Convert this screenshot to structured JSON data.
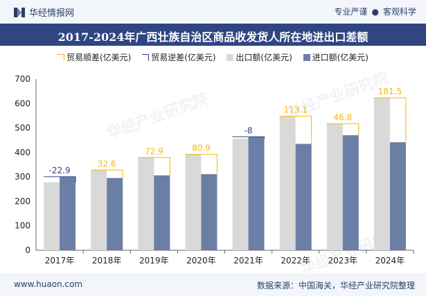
{
  "header": {
    "brand": "华经情报网",
    "right_left": "专业严谨",
    "right_right": "客观科学"
  },
  "title": "2017-2024年广西壮族自治区商品收发货人所在地进出口差额",
  "legend": [
    "贸易顺差(亿美元)",
    "贸易逆差(亿美元)",
    "出口额(亿美元)",
    "进口额(亿美元)"
  ],
  "footer": {
    "url": "www.huaon.com",
    "source": "数据来源：中国海关，华经产业研究院整理"
  },
  "watermark": "华经产业研究院",
  "colors": {
    "export": "#d9d9d9",
    "import": "#6b7ea6",
    "surplus": "#f5b800",
    "deficit": "#2f4683",
    "title_bg": "#2f4683"
  },
  "chart_data": {
    "type": "bar",
    "categories": [
      "2017年",
      "2018年",
      "2019年",
      "2020年",
      "2021年",
      "2022年",
      "2023年",
      "2024年"
    ],
    "series": [
      {
        "name": "出口额(亿美元)",
        "values": [
          278,
          328,
          379,
          392,
          456,
          548,
          517,
          623
        ]
      },
      {
        "name": "进口额(亿美元)",
        "values": [
          300.9,
          295.4,
          306.1,
          311.1,
          464,
          434.9,
          470.2,
          441.5
        ]
      }
    ],
    "balance": {
      "values": [
        -22.9,
        32.6,
        72.9,
        80.9,
        -8,
        113.1,
        46.8,
        181.5
      ],
      "labels": [
        "-22.9",
        "32.6",
        "72.9",
        "80.9",
        "-8",
        "113.1",
        "46.8",
        "181.5"
      ]
    },
    "y_ticks": [
      "0",
      "100",
      "200",
      "300",
      "400",
      "500",
      "600",
      "700"
    ],
    "ylim": [
      0,
      700
    ]
  }
}
